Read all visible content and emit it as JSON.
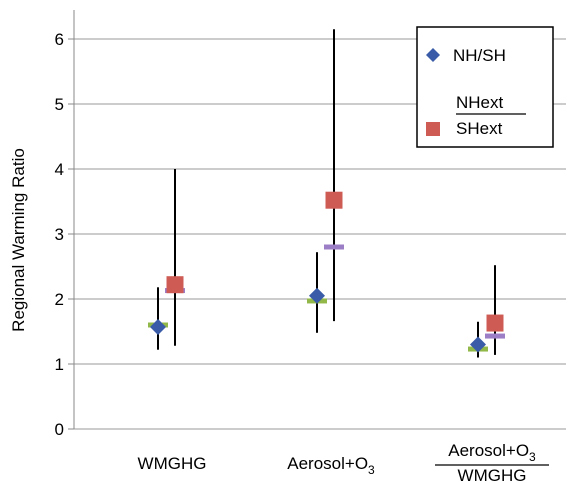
{
  "chart_data": {
    "type": "scatter",
    "ylabel": "Regional Warming Ratio",
    "ylim": [
      0,
      6.5
    ],
    "yticks": [
      "0",
      "1",
      "2",
      "3",
      "4",
      "5",
      "6"
    ],
    "grid": true,
    "legend_position": "top-right",
    "categories": [
      {
        "label": "WMGHG"
      },
      {
        "label": "Aerosol+O",
        "sub": "3"
      },
      {
        "label_num": "Aerosol+O",
        "sub": "3",
        "label_den": "WMGHG"
      }
    ],
    "series": [
      {
        "name": "NH/SH",
        "marker": "diamond",
        "color": "#3a5ca8",
        "values": [
          1.57,
          2.05,
          1.3
        ],
        "error_low": [
          1.22,
          1.48,
          1.1
        ],
        "error_high": [
          2.18,
          2.72,
          1.65
        ],
        "mean_bar_values": [
          1.6,
          1.97,
          1.23
        ],
        "mean_bar_color": "#92b84a"
      },
      {
        "name_num": "NHext",
        "name_den": "SHext",
        "marker": "square",
        "color": "#cf5b55",
        "values": [
          2.22,
          3.52,
          1.63
        ],
        "error_low": [
          1.28,
          1.66,
          1.14
        ],
        "error_high": [
          4.0,
          6.15,
          2.52
        ],
        "mean_bar_values": [
          2.13,
          2.8,
          1.43
        ],
        "mean_bar_color": "#9b7ec6"
      }
    ]
  }
}
